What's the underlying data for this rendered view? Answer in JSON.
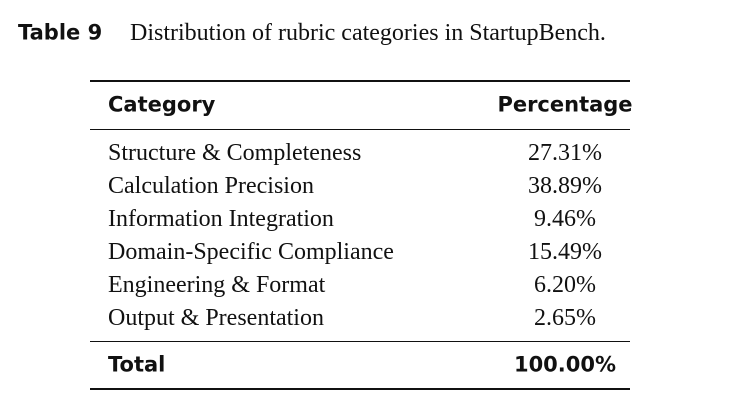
{
  "caption": {
    "label": "Table 9",
    "text": "Distribution of rubric categories in StartupBench."
  },
  "table": {
    "header": [
      "Category",
      "Percentage"
    ],
    "rows": [
      [
        "Structure & Completeness",
        "27.31%"
      ],
      [
        "Calculation Precision",
        "38.89%"
      ],
      [
        "Information Integration",
        "9.46%"
      ],
      [
        "Domain-Specific Compliance",
        "15.49%"
      ],
      [
        "Engineering & Format",
        "6.20%"
      ],
      [
        "Output & Presentation",
        "2.65%"
      ]
    ],
    "total": [
      "Total",
      "100.00%"
    ]
  }
}
